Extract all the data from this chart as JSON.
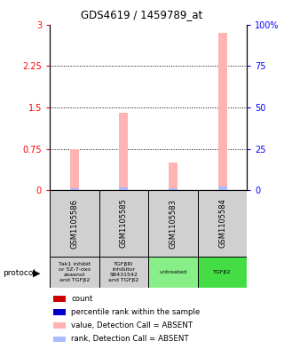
{
  "title": "GDS4619 / 1459789_at",
  "samples": [
    "GSM1105586",
    "GSM1105585",
    "GSM1105583",
    "GSM1105584"
  ],
  "bar_values": [
    0.75,
    1.4,
    0.5,
    2.85
  ],
  "rank_values": [
    0.04,
    0.05,
    0.04,
    0.07
  ],
  "ylim_left": [
    0,
    3
  ],
  "ylim_right": [
    0,
    100
  ],
  "yticks_left": [
    0,
    0.75,
    1.5,
    2.25,
    3
  ],
  "yticks_right": [
    0,
    25,
    50,
    75,
    100
  ],
  "ytick_labels_left": [
    "0",
    "0.75",
    "1.5",
    "2.25",
    "3"
  ],
  "ytick_labels_right": [
    "0",
    "25",
    "50",
    "75",
    "100%"
  ],
  "bar_color": "#FFB3B3",
  "rank_color": "#AABBFF",
  "protocol_labels": [
    "Tak1 inhibit\nor 5Z-7-oxo\nzeaenol\nand TGFβ2",
    "TGFβRI\ninhibitor\nSB431542\nand TGFβ2",
    "untreated",
    "TGFβ2"
  ],
  "protocol_colors": [
    "#d0d0d0",
    "#d0d0d0",
    "#88EE88",
    "#44DD44"
  ],
  "sample_box_color": "#d0d0d0",
  "legend_items": [
    {
      "color": "#cc0000",
      "label": "count"
    },
    {
      "color": "#0000cc",
      "label": "percentile rank within the sample"
    },
    {
      "color": "#FFB3B3",
      "label": "value, Detection Call = ABSENT"
    },
    {
      "color": "#AABBFF",
      "label": "rank, Detection Call = ABSENT"
    }
  ]
}
